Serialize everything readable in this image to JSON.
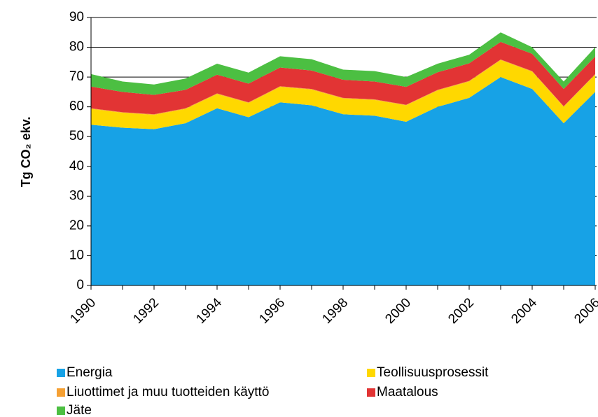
{
  "chart_data": {
    "type": "stacked_area",
    "y_label": "Tg CO₂ ekv.",
    "x": [
      1990,
      1991,
      1992,
      1993,
      1994,
      1995,
      1996,
      1997,
      1998,
      1999,
      2000,
      2001,
      2002,
      2003,
      2004,
      2005,
      2006
    ],
    "xlim": [
      1990,
      2006
    ],
    "xticks": [
      1990,
      1992,
      1994,
      1996,
      1998,
      2000,
      2002,
      2004,
      2006
    ],
    "ylim": [
      0,
      90
    ],
    "yticks": [
      0,
      10,
      20,
      30,
      40,
      50,
      60,
      70,
      80,
      90
    ],
    "grid": true,
    "legend": "bottom",
    "series": [
      {
        "name": "Energia",
        "color": "#17a2e6",
        "values": [
          54,
          53,
          52.5,
          54.5,
          59.5,
          56.5,
          61.5,
          60.5,
          57.5,
          57,
          55,
          60,
          63,
          70,
          66,
          54.5,
          65
        ]
      },
      {
        "name": "Teollisuusprosessit",
        "color": "#ffd800",
        "values": [
          5.3,
          5,
          4.8,
          4.8,
          4.8,
          4.8,
          5.2,
          5.3,
          5.3,
          5.3,
          5.5,
          5.5,
          5.5,
          5.7,
          5.8,
          5.5,
          5.8
        ]
      },
      {
        "name": "Liuottimet ja muu tuotteiden käyttö",
        "color": "#f5a033",
        "values": [
          0.2,
          0.2,
          0.2,
          0.2,
          0.2,
          0.2,
          0.2,
          0.2,
          0.2,
          0.2,
          0.2,
          0.2,
          0.2,
          0.2,
          0.2,
          0.2,
          0.2
        ]
      },
      {
        "name": "Maatalous",
        "color": "#e23434",
        "values": [
          7.3,
          6.8,
          6.5,
          6.2,
          6.3,
          6.3,
          6.3,
          6.2,
          6.1,
          6,
          6,
          5.9,
          5.9,
          5.9,
          5.8,
          5.8,
          5.9
        ]
      },
      {
        "name": "Jäte",
        "color": "#4cbf42",
        "values": [
          4.2,
          3.5,
          3.5,
          3.8,
          3.7,
          3.7,
          3.8,
          3.8,
          3.4,
          3.5,
          3.3,
          2.9,
          2.9,
          3.2,
          2.2,
          2.5,
          3.1
        ]
      }
    ]
  }
}
